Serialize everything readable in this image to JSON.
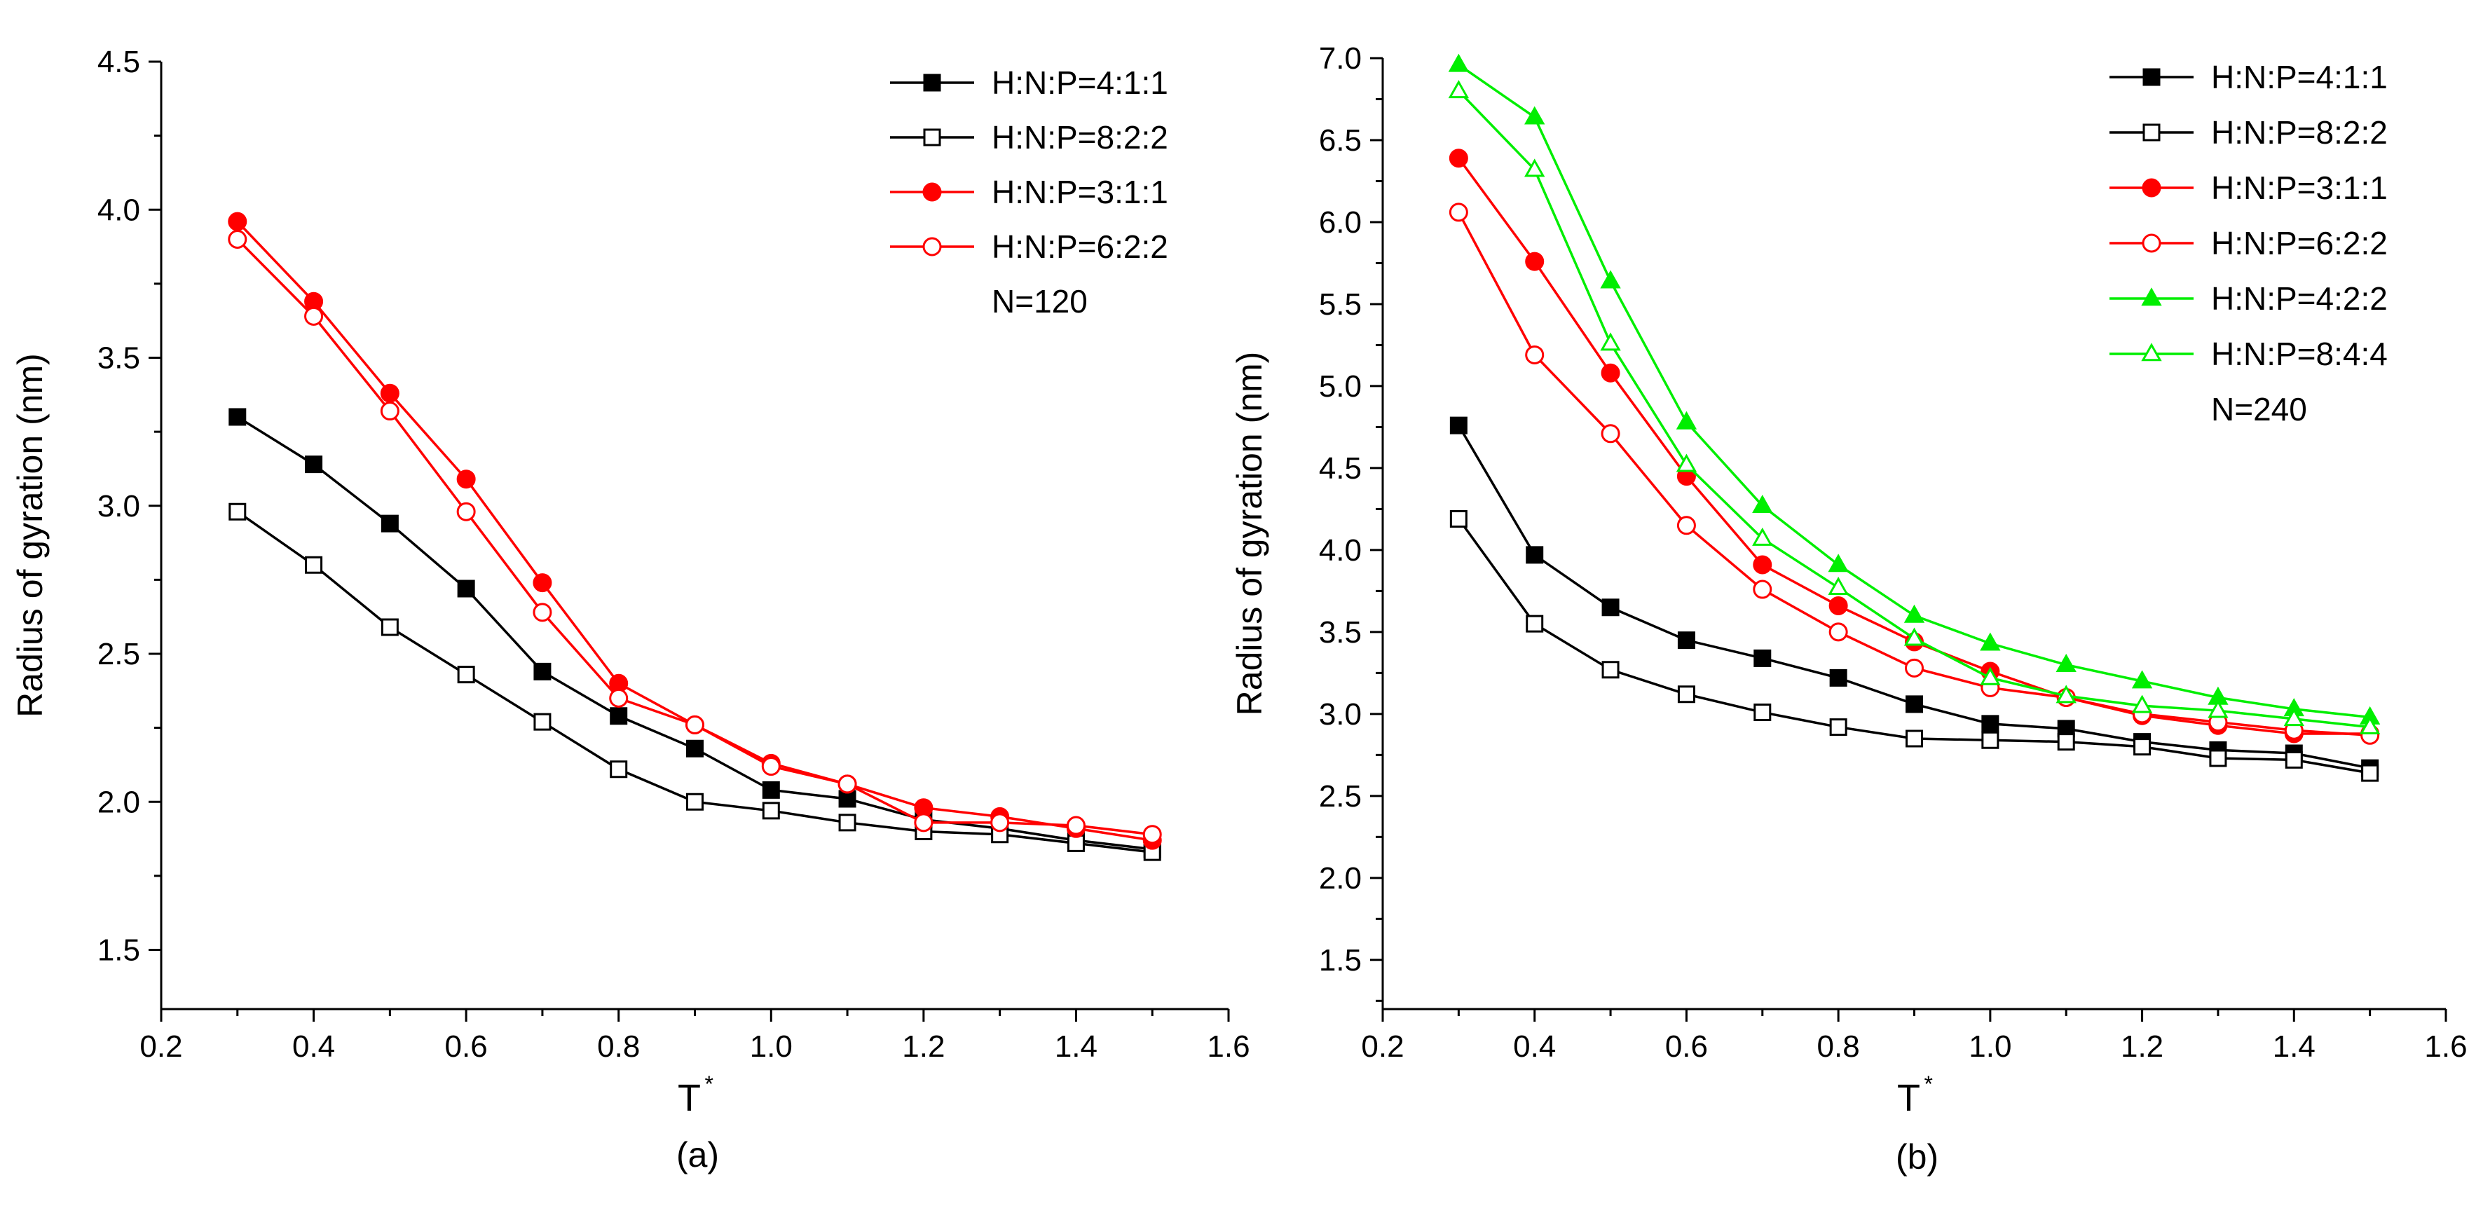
{
  "chart_data": [
    {
      "type": "line",
      "panel_label": "(a)",
      "xlabel": "T",
      "xlabel_superscript": "*",
      "ylabel": "Radius of gyration (nm)",
      "xlim": [
        0.2,
        1.6
      ],
      "ylim": [
        1.3,
        4.5
      ],
      "xticks": [
        "0.2",
        "0.4",
        "0.6",
        "0.8",
        "1.0",
        "1.2",
        "1.4",
        "1.6"
      ],
      "yticks": [
        "1.5",
        "2.0",
        "2.5",
        "3.0",
        "3.5",
        "4.0",
        "4.5"
      ],
      "x": [
        0.3,
        0.4,
        0.5,
        0.6,
        0.7,
        0.8,
        0.9,
        1.0,
        1.1,
        1.2,
        1.3,
        1.4,
        1.5
      ],
      "legend_note": "N=120",
      "series": [
        {
          "name": "H:N:P=4:1:1",
          "color": "#000000",
          "marker": "square",
          "filled": true,
          "values": [
            3.3,
            3.14,
            2.94,
            2.72,
            2.44,
            2.29,
            2.18,
            2.04,
            2.01,
            1.94,
            1.91,
            1.87,
            1.84
          ]
        },
        {
          "name": "H:N:P=8:2:2",
          "color": "#000000",
          "marker": "square",
          "filled": false,
          "values": [
            2.98,
            2.8,
            2.59,
            2.43,
            2.27,
            2.11,
            2.0,
            1.97,
            1.93,
            1.9,
            1.89,
            1.86,
            1.83
          ]
        },
        {
          "name": "H:N:P=3:1:1",
          "color": "#ff0000",
          "marker": "circle",
          "filled": true,
          "values": [
            3.96,
            3.69,
            3.38,
            3.09,
            2.74,
            2.4,
            2.26,
            2.13,
            2.06,
            1.98,
            1.95,
            1.91,
            1.87
          ]
        },
        {
          "name": "H:N:P=6:2:2",
          "color": "#ff0000",
          "marker": "circle",
          "filled": false,
          "values": [
            3.9,
            3.64,
            3.32,
            2.98,
            2.64,
            2.35,
            2.26,
            2.12,
            2.06,
            1.93,
            1.93,
            1.92,
            1.89
          ]
        }
      ]
    },
    {
      "type": "line",
      "panel_label": "(b)",
      "xlabel": "T",
      "xlabel_superscript": "*",
      "ylabel": "Radius of gyration (nm)",
      "xlim": [
        0.2,
        1.6
      ],
      "ylim": [
        1.2,
        7.0
      ],
      "xticks": [
        "0.2",
        "0.4",
        "0.6",
        "0.8",
        "1.0",
        "1.2",
        "1.4",
        "1.6"
      ],
      "yticks": [
        "1.5",
        "2.0",
        "2.5",
        "3.0",
        "3.5",
        "4.0",
        "4.5",
        "5.0",
        "5.5",
        "6.0",
        "6.5",
        "7.0"
      ],
      "x": [
        0.3,
        0.4,
        0.5,
        0.6,
        0.7,
        0.8,
        0.9,
        1.0,
        1.1,
        1.2,
        1.3,
        1.4,
        1.5
      ],
      "legend_note": "N=240",
      "series": [
        {
          "name": "H:N:P=4:1:1",
          "color": "#000000",
          "marker": "square",
          "filled": true,
          "values": [
            4.76,
            3.97,
            3.65,
            3.45,
            3.34,
            3.22,
            3.06,
            2.94,
            2.91,
            2.83,
            2.78,
            2.76,
            2.67
          ]
        },
        {
          "name": "H:N:P=8:2:2",
          "color": "#000000",
          "marker": "square",
          "filled": false,
          "values": [
            4.19,
            3.55,
            3.27,
            3.12,
            3.01,
            2.92,
            2.85,
            2.84,
            2.83,
            2.8,
            2.73,
            2.72,
            2.64
          ]
        },
        {
          "name": "H:N:P=3:1:1",
          "color": "#ff0000",
          "marker": "circle",
          "filled": true,
          "values": [
            6.39,
            5.76,
            5.08,
            4.45,
            3.91,
            3.66,
            3.44,
            3.26,
            3.1,
            2.99,
            2.93,
            2.88,
            2.88
          ]
        },
        {
          "name": "H:N:P=6:2:2",
          "color": "#ff0000",
          "marker": "circle",
          "filled": false,
          "values": [
            6.06,
            5.19,
            4.71,
            4.15,
            3.76,
            3.5,
            3.28,
            3.16,
            3.1,
            3.0,
            2.95,
            2.9,
            2.87
          ]
        },
        {
          "name": "H:N:P=4:2:2",
          "color": "#00ee00",
          "marker": "triangle",
          "filled": true,
          "values": [
            6.96,
            6.64,
            5.64,
            4.78,
            4.27,
            3.91,
            3.6,
            3.43,
            3.3,
            3.2,
            3.1,
            3.03,
            2.98
          ]
        },
        {
          "name": "H:N:P=8:4:4",
          "color": "#00ee00",
          "marker": "triangle",
          "filled": false,
          "values": [
            6.8,
            6.32,
            5.26,
            4.52,
            4.07,
            3.77,
            3.46,
            3.22,
            3.11,
            3.05,
            3.02,
            2.97,
            2.92
          ]
        }
      ]
    }
  ]
}
